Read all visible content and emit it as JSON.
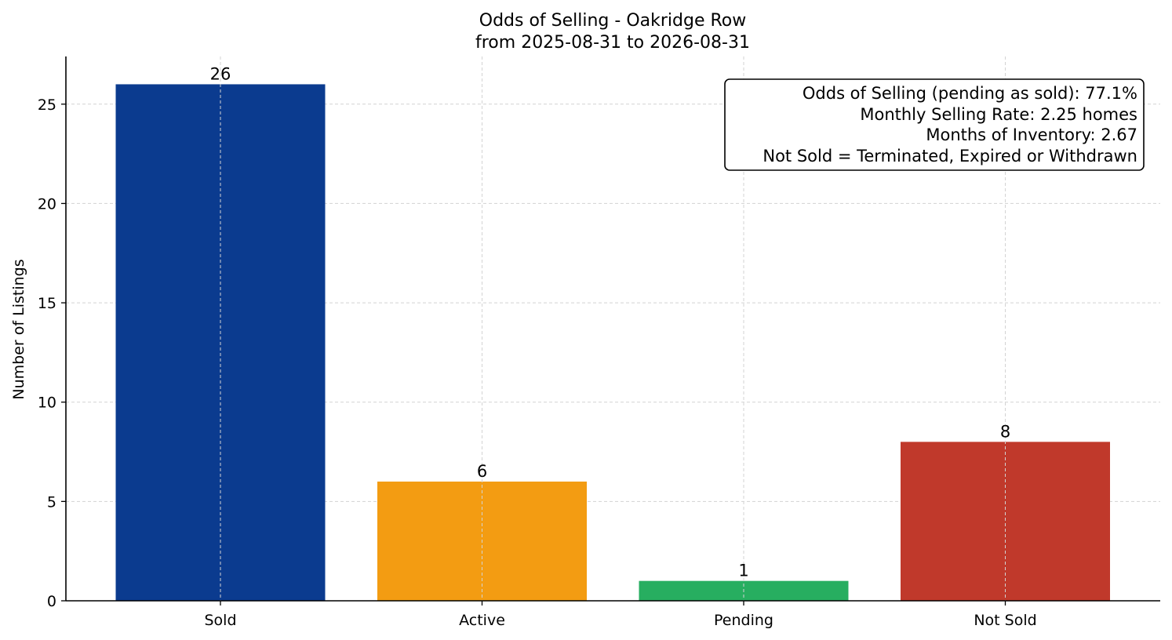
{
  "chart_data": {
    "type": "bar",
    "title": "Odds of Selling - Oakridge Row",
    "subtitle": "from 2025-08-31 to 2026-08-31",
    "xlabel": "",
    "ylabel": "Number of Listings",
    "categories": [
      "Sold",
      "Active",
      "Pending",
      "Not Sold"
    ],
    "values": [
      26,
      6,
      1,
      8
    ],
    "colors": [
      "#0b3b8f",
      "#f39c12",
      "#27ae60",
      "#c0392b"
    ],
    "ylim": [
      0,
      27.4
    ],
    "yticks": [
      0,
      5,
      10,
      15,
      20,
      25
    ],
    "grid": true,
    "info_box": {
      "placement": "top-right",
      "lines": [
        "Odds of Selling (pending as sold): 77.1%",
        "Monthly Selling Rate: 2.25 homes",
        "Months of Inventory: 2.67",
        "Not Sold = Terminated, Expired or Withdrawn"
      ]
    }
  }
}
